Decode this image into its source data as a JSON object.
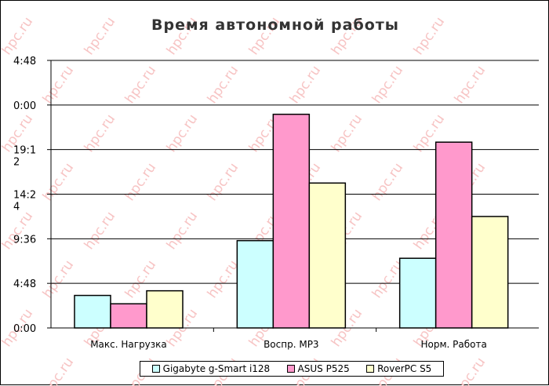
{
  "chart_data": {
    "type": "bar",
    "title": "Время автономной работы",
    "xlabel": "",
    "ylabel": "",
    "categories": [
      "Макс. Нагрузка",
      "Воспр. MP3",
      "Норм. Работа"
    ],
    "series": [
      {
        "name": "Gigabyte g-Smart i128",
        "color": "#ccffff",
        "values": [
          3.5,
          9.4,
          7.5
        ]
      },
      {
        "name": "ASUS P525",
        "color": "#ff99cc",
        "values": [
          2.6,
          23.0,
          20.0
        ]
      },
      {
        "name": "RoverPC S5",
        "color": "#ffffcc",
        "values": [
          4.0,
          15.6,
          12.0
        ]
      }
    ],
    "y_ticks": [
      {
        "value": 0,
        "label": [
          "0:00"
        ]
      },
      {
        "value": 4.8,
        "label": [
          "4:48"
        ]
      },
      {
        "value": 9.6,
        "label": [
          "9:36"
        ]
      },
      {
        "value": 14.4,
        "label": [
          "14:2",
          "4"
        ]
      },
      {
        "value": 19.2,
        "label": [
          "19:1",
          "2"
        ]
      },
      {
        "value": 24,
        "label": [
          "0:00"
        ]
      },
      {
        "value": 28.8,
        "label": [
          "4:48"
        ]
      }
    ],
    "ylim": [
      0,
      28.8
    ],
    "grid": true,
    "legend": "bottom"
  },
  "watermark_text": "hpc.ru"
}
